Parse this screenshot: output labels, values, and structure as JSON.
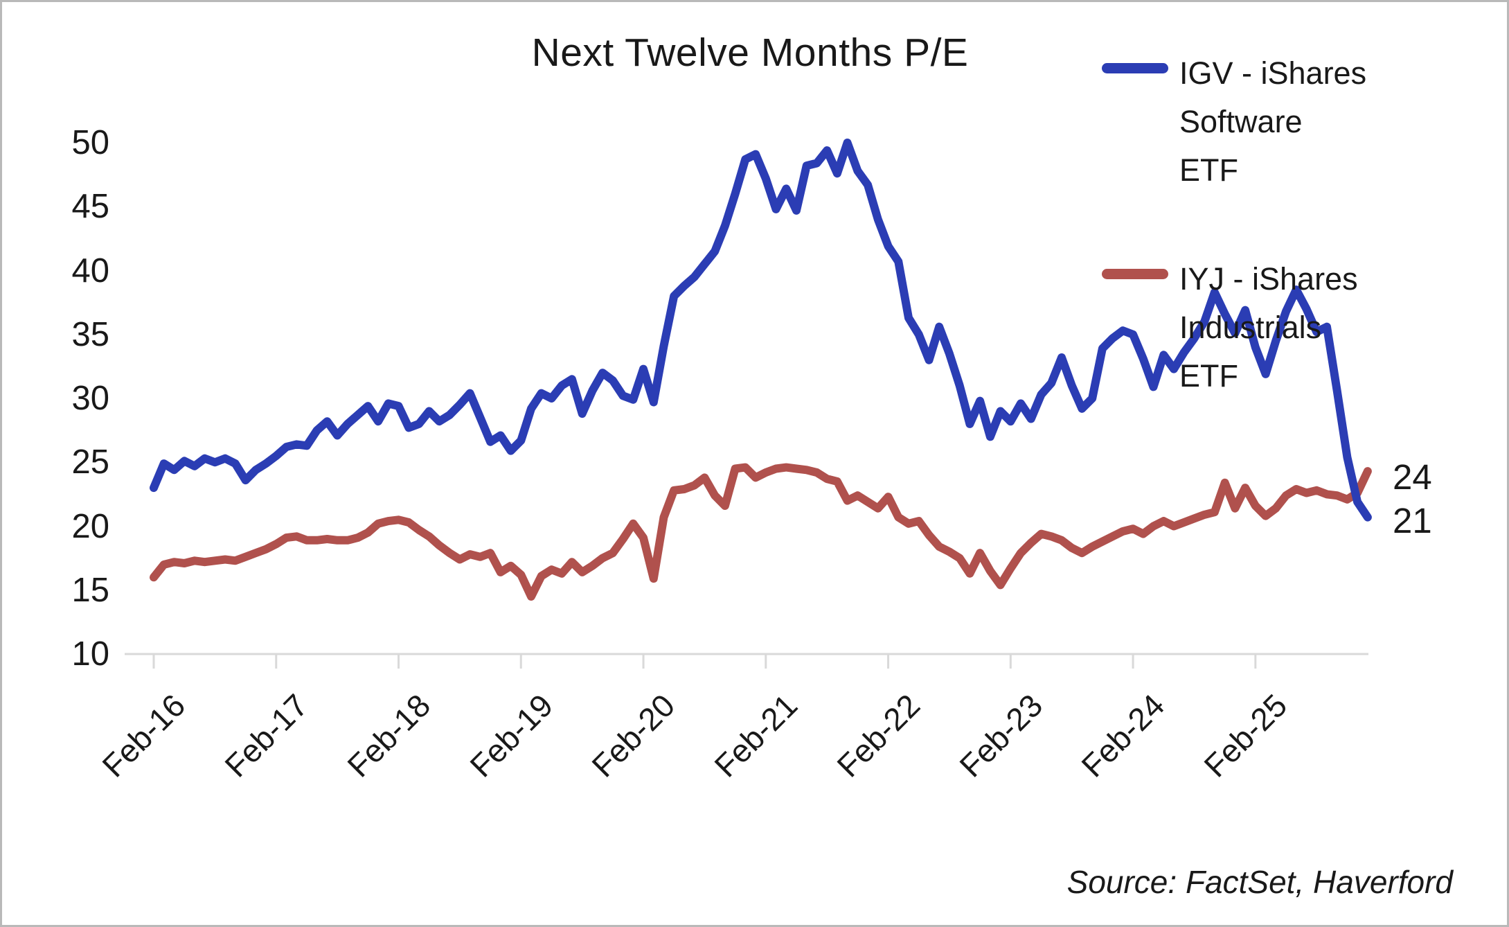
{
  "title": "Next Twelve Months P/E",
  "legend": {
    "igv": {
      "line1": "IGV - iShares Software",
      "line2": "ETF",
      "color": "#2B3DB4"
    },
    "iyj": {
      "line1": "IYJ - iShares Industrials",
      "line2": "ETF",
      "color": "#B0514D"
    }
  },
  "end_labels": {
    "iyj": "24",
    "igv": "21"
  },
  "source": "Source: FactSet, Haverford",
  "colors": {
    "igv_line": "#2B3DB4",
    "iyj_line": "#B0514D",
    "axis": "#d9d9d9",
    "text": "#191919"
  },
  "chart_data": {
    "type": "line",
    "title": "Next Twelve Months P/E",
    "x_unit": "monthly",
    "x_start": "Feb-2016",
    "x_end": "Jan-2026",
    "x_tick_labels": [
      "Feb-16",
      "Feb-17",
      "Feb-18",
      "Feb-19",
      "Feb-20",
      "Feb-21",
      "Feb-22",
      "Feb-23",
      "Feb-24",
      "Feb-25"
    ],
    "y_ticks": [
      50,
      45,
      40,
      35,
      30,
      25,
      20,
      15,
      10
    ],
    "ylim": [
      10,
      52
    ],
    "grid": false,
    "legend_position": "top-right",
    "end_values": {
      "IYJ": 24,
      "IGV": 21
    },
    "series": [
      {
        "name": "IGV - iShares Software ETF",
        "color": "#2B3DB4",
        "values": [
          23.0,
          24.9,
          24.4,
          25.1,
          24.7,
          25.3,
          25.0,
          25.3,
          24.9,
          23.6,
          24.4,
          24.9,
          25.5,
          26.2,
          26.4,
          26.3,
          27.5,
          28.2,
          27.1,
          28.0,
          28.7,
          29.4,
          28.2,
          29.6,
          29.4,
          27.7,
          28.0,
          29.0,
          28.2,
          28.7,
          29.5,
          30.4,
          28.5,
          26.6,
          27.1,
          25.9,
          26.7,
          29.2,
          30.4,
          30.0,
          31.0,
          31.5,
          28.8,
          30.6,
          32.0,
          31.4,
          30.2,
          29.9,
          32.3,
          29.7,
          34.1,
          38.0,
          38.8,
          39.5,
          40.5,
          41.5,
          43.5,
          46.0,
          48.7,
          49.1,
          47.2,
          44.8,
          46.4,
          44.7,
          48.2,
          48.4,
          49.4,
          47.6,
          50.0,
          47.8,
          46.7,
          44.0,
          41.9,
          40.7,
          36.3,
          35.0,
          33.0,
          35.6,
          33.5,
          31.0,
          28.0,
          29.8,
          27.0,
          29.0,
          28.2,
          29.6,
          28.4,
          30.3,
          31.2,
          33.2,
          31.0,
          29.2,
          30.0,
          33.9,
          34.7,
          35.3,
          35.0,
          33.1,
          30.9,
          33.4,
          32.3,
          33.6,
          34.7,
          36.0,
          38.3,
          36.6,
          35.1,
          36.9,
          34.0,
          31.9,
          34.5,
          36.8,
          38.5,
          37.0,
          35.2,
          35.6,
          30.6,
          25.4,
          21.9,
          20.7
        ]
      },
      {
        "name": "IYJ - iShares Industrials ETF",
        "color": "#B0514D",
        "values": [
          16.0,
          17.0,
          17.2,
          17.1,
          17.3,
          17.2,
          17.3,
          17.4,
          17.3,
          17.6,
          17.9,
          18.2,
          18.6,
          19.1,
          19.2,
          18.9,
          18.9,
          19.0,
          18.9,
          18.9,
          19.1,
          19.5,
          20.2,
          20.4,
          20.5,
          20.3,
          19.7,
          19.2,
          18.5,
          17.9,
          17.4,
          17.8,
          17.6,
          17.9,
          16.4,
          16.9,
          16.2,
          14.5,
          16.1,
          16.6,
          16.3,
          17.2,
          16.4,
          16.9,
          17.5,
          17.9,
          19.0,
          20.2,
          19.1,
          15.9,
          20.7,
          22.8,
          22.9,
          23.2,
          23.8,
          22.4,
          21.6,
          24.5,
          24.6,
          23.8,
          24.2,
          24.5,
          24.6,
          24.5,
          24.4,
          24.2,
          23.7,
          23.5,
          22.0,
          22.4,
          21.9,
          21.4,
          22.3,
          20.7,
          20.2,
          20.4,
          19.3,
          18.4,
          18.0,
          17.5,
          16.3,
          17.9,
          16.5,
          15.4,
          16.7,
          17.9,
          18.7,
          19.4,
          19.2,
          18.9,
          18.3,
          17.9,
          18.4,
          18.8,
          19.2,
          19.6,
          19.8,
          19.4,
          20.0,
          20.4,
          20.0,
          20.3,
          20.6,
          20.9,
          21.1,
          23.4,
          21.4,
          23.0,
          21.6,
          20.8,
          21.4,
          22.4,
          22.9,
          22.6,
          22.8,
          22.5,
          22.4,
          22.1,
          22.6,
          24.3
        ]
      }
    ]
  }
}
